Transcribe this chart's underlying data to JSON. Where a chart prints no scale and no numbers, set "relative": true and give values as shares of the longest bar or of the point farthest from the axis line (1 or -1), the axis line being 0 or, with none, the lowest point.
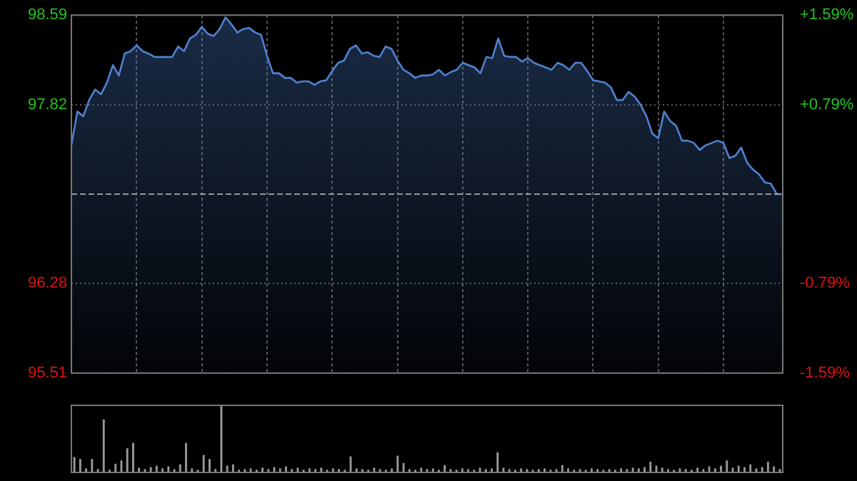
{
  "chart_data": [
    {
      "type": "area",
      "categories": [
        null,
        null,
        null,
        null,
        null,
        null,
        null,
        null,
        null,
        null,
        null,
        null,
        null,
        null,
        null,
        null,
        null,
        null,
        null,
        null,
        null,
        null,
        null,
        null,
        null,
        null,
        null,
        null,
        null,
        null,
        null,
        null,
        null,
        null,
        null,
        null,
        null,
        null,
        null,
        null,
        null,
        null,
        null,
        null,
        null,
        null,
        null,
        null,
        null,
        null,
        null,
        null,
        null,
        null,
        null,
        null,
        null,
        null,
        null,
        null,
        null,
        null,
        null,
        null,
        null,
        null,
        null,
        null,
        null,
        null,
        null,
        null,
        null,
        null,
        null,
        null,
        null,
        null,
        null,
        null,
        null,
        null,
        null,
        null,
        null,
        null,
        null,
        null,
        null,
        null,
        null,
        null,
        null,
        null,
        null,
        null,
        null,
        null,
        null,
        null,
        null,
        null,
        null,
        null,
        null,
        null,
        null,
        null,
        null,
        null,
        null,
        null,
        null,
        null,
        null,
        null,
        null,
        null,
        null,
        null,
        null
      ],
      "series": [
        {
          "color": "#4f82d2",
          "values": [
            97.47,
            97.76,
            97.72,
            97.86,
            97.95,
            97.91,
            98.01,
            98.16,
            98.07,
            98.26,
            98.28,
            98.33,
            98.28,
            98.26,
            98.23,
            98.23,
            98.23,
            98.23,
            98.32,
            98.28,
            98.39,
            98.42,
            98.49,
            98.43,
            98.41,
            98.47,
            98.57,
            98.51,
            98.44,
            98.47,
            98.48,
            98.44,
            98.42,
            98.24,
            98.09,
            98.09,
            98.05,
            98.05,
            98.01,
            98.02,
            98.02,
            97.99,
            98.02,
            98.03,
            98.11,
            98.18,
            98.2,
            98.3,
            98.33,
            98.26,
            98.27,
            98.24,
            98.23,
            98.32,
            98.3,
            98.2,
            98.12,
            98.09,
            98.05,
            98.07,
            98.07,
            98.08,
            98.12,
            98.07,
            98.1,
            98.12,
            98.18,
            98.16,
            98.14,
            98.09,
            98.23,
            98.22,
            98.39,
            98.24,
            98.23,
            98.23,
            98.19,
            98.22,
            98.18,
            98.16,
            98.14,
            98.12,
            98.18,
            98.16,
            98.12,
            98.18,
            98.18,
            98.11,
            98.03,
            98.02,
            98.01,
            97.97,
            97.86,
            97.86,
            97.93,
            97.89,
            97.82,
            97.72,
            97.57,
            97.53,
            97.76,
            97.68,
            97.64,
            97.51,
            97.51,
            97.49,
            97.43,
            97.47,
            97.49,
            97.51,
            97.49,
            97.36,
            97.38,
            97.45,
            97.32,
            97.26,
            97.22,
            97.15,
            97.14,
            97.05,
            97.05
          ]
        }
      ],
      "ylim": [
        95.51,
        98.59
      ],
      "yticks": [
        95.51,
        96.28,
        97.82,
        98.59
      ],
      "y2lim": [
        -1.59,
        1.59
      ],
      "y2ticks": [
        {
          "value": -1.59,
          "label": "-1.59%"
        },
        {
          "value": -0.79,
          "label": "-0.79%"
        },
        {
          "value": 0.79,
          "label": "+0.79%"
        },
        {
          "value": 1.59,
          "label": "+1.59%"
        }
      ],
      "ref_lines": [
        {
          "axis": "y",
          "value": 97.05,
          "color": "#9a9a9a",
          "line_style": "dashed"
        }
      ],
      "grid": true,
      "marker": "none",
      "legend": false
    },
    {
      "type": "bar",
      "relative": true,
      "color": "#9a9a9a",
      "legend": false,
      "categories": [
        null,
        null,
        null,
        null,
        null,
        null,
        null,
        null,
        null,
        null,
        null,
        null,
        null,
        null,
        null,
        null,
        null,
        null,
        null,
        null,
        null,
        null,
        null,
        null,
        null,
        null,
        null,
        null,
        null,
        null,
        null,
        null,
        null,
        null,
        null,
        null,
        null,
        null,
        null,
        null,
        null,
        null,
        null,
        null,
        null,
        null,
        null,
        null,
        null,
        null,
        null,
        null,
        null,
        null,
        null,
        null,
        null,
        null,
        null,
        null,
        null,
        null,
        null,
        null,
        null,
        null,
        null,
        null,
        null,
        null,
        null,
        null,
        null,
        null,
        null,
        null,
        null,
        null,
        null,
        null,
        null,
        null,
        null,
        null,
        null,
        null,
        null,
        null,
        null,
        null,
        null,
        null,
        null,
        null,
        null,
        null,
        null,
        null,
        null,
        null,
        null,
        null,
        null,
        null,
        null,
        null,
        null,
        null,
        null,
        null,
        null,
        null,
        null,
        null,
        null,
        null,
        null,
        null,
        null,
        null,
        null
      ],
      "values": [
        0.23,
        0.2,
        0.06,
        0.2,
        0.05,
        0.79,
        0.04,
        0.13,
        0.18,
        0.36,
        0.44,
        0.07,
        0.05,
        0.08,
        0.1,
        0.06,
        0.09,
        0.05,
        0.12,
        0.44,
        0.06,
        0.04,
        0.26,
        0.2,
        0.05,
        1,
        0.1,
        0.12,
        0.04,
        0.05,
        0.06,
        0.04,
        0.07,
        0.05,
        0.08,
        0.06,
        0.09,
        0.05,
        0.07,
        0.04,
        0.06,
        0.05,
        0.07,
        0.04,
        0.06,
        0.05,
        0.04,
        0.24,
        0.06,
        0.05,
        0.04,
        0.07,
        0.05,
        0.04,
        0.06,
        0.25,
        0.14,
        0.05,
        0.04,
        0.07,
        0.05,
        0.06,
        0.04,
        0.11,
        0.05,
        0.04,
        0.06,
        0.05,
        0.04,
        0.07,
        0.05,
        0.06,
        0.3,
        0.07,
        0.05,
        0.04,
        0.06,
        0.05,
        0.04,
        0.05,
        0.06,
        0.04,
        0.05,
        0.11,
        0.06,
        0.04,
        0.05,
        0.04,
        0.06,
        0.05,
        0.04,
        0.05,
        0.04,
        0.06,
        0.05,
        0.07,
        0.06,
        0.08,
        0.16,
        0.1,
        0.07,
        0.05,
        0.04,
        0.06,
        0.05,
        0.04,
        0.07,
        0.05,
        0.09,
        0.06,
        0.1,
        0.18,
        0.07,
        0.1,
        0.08,
        0.12,
        0.06,
        0.08,
        0.16,
        0.09,
        0.05
      ]
    }
  ]
}
